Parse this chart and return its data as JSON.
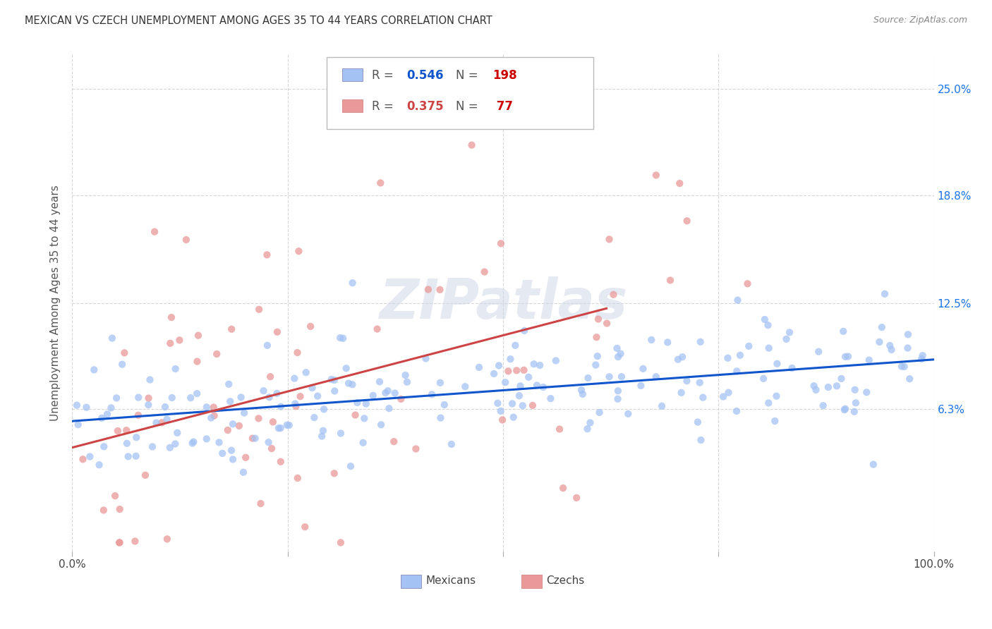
{
  "title": "MEXICAN VS CZECH UNEMPLOYMENT AMONG AGES 35 TO 44 YEARS CORRELATION CHART",
  "source": "Source: ZipAtlas.com",
  "ylabel": "Unemployment Among Ages 35 to 44 years",
  "yticks": [
    "6.3%",
    "12.5%",
    "18.8%",
    "25.0%"
  ],
  "ytick_vals": [
    0.063,
    0.125,
    0.188,
    0.25
  ],
  "xlim": [
    0.0,
    1.0
  ],
  "ylim": [
    -0.02,
    0.27
  ],
  "mexican_color": "#a4c2f4",
  "czech_color": "#ea9999",
  "mexican_line_color": "#1155cc",
  "czech_line_color": "#e06666",
  "czech_line_color2": "#cc4444",
  "n_color": "#cc0000",
  "r_color_mex": "#1155cc",
  "r_color_czk": "#cc4444",
  "mexican_R": 0.546,
  "mexican_N": 198,
  "czech_R": 0.375,
  "czech_N": 77,
  "watermark": "ZIPatlas",
  "mexican_seed": 42,
  "czech_seed": 123,
  "background_color": "#ffffff",
  "grid_color": "#cccccc"
}
